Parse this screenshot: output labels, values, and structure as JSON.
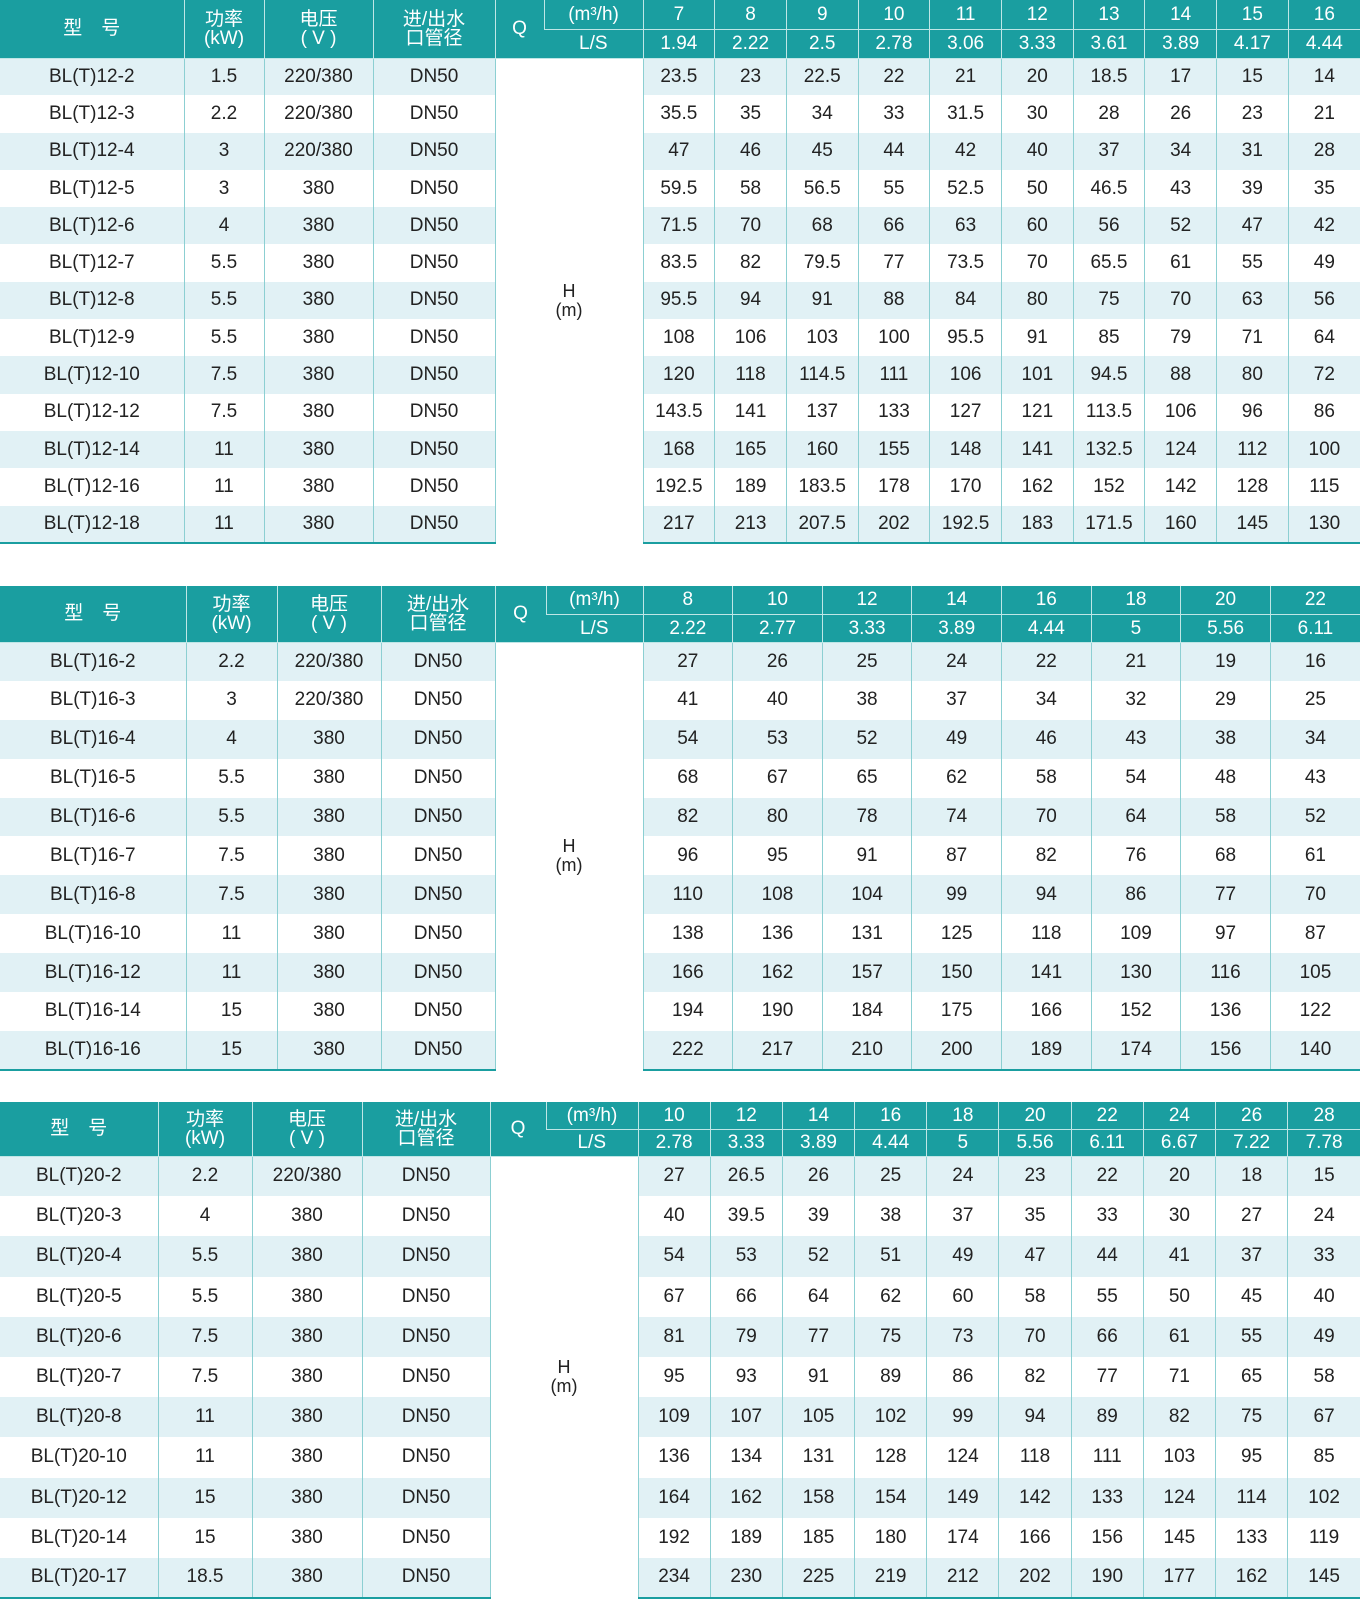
{
  "tables": [
    {
      "headers": {
        "model": "型　号",
        "power": "功率\n(kW)",
        "voltage": "电压\n( V )",
        "pipe": "进/出水\n口管径",
        "q": "Q",
        "unit_m3h": "(m³/h)",
        "unit_ls": "L/S",
        "head": "H\n(m)"
      },
      "flow_m3h": [
        "7",
        "8",
        "9",
        "10",
        "11",
        "12",
        "13",
        "14",
        "15",
        "16"
      ],
      "flow_ls": [
        "1.94",
        "2.22",
        "2.5",
        "2.78",
        "3.06",
        "3.33",
        "3.61",
        "3.89",
        "4.17",
        "4.44"
      ],
      "rows": [
        {
          "model": "BL(T)12-2",
          "power": "1.5",
          "voltage": "220/380",
          "pipe": "DN50",
          "head": [
            "23.5",
            "23",
            "22.5",
            "22",
            "21",
            "20",
            "18.5",
            "17",
            "15",
            "14"
          ]
        },
        {
          "model": "BL(T)12-3",
          "power": "2.2",
          "voltage": "220/380",
          "pipe": "DN50",
          "head": [
            "35.5",
            "35",
            "34",
            "33",
            "31.5",
            "30",
            "28",
            "26",
            "23",
            "21"
          ]
        },
        {
          "model": "BL(T)12-4",
          "power": "3",
          "voltage": "220/380",
          "pipe": "DN50",
          "head": [
            "47",
            "46",
            "45",
            "44",
            "42",
            "40",
            "37",
            "34",
            "31",
            "28"
          ]
        },
        {
          "model": "BL(T)12-5",
          "power": "3",
          "voltage": "380",
          "pipe": "DN50",
          "head": [
            "59.5",
            "58",
            "56.5",
            "55",
            "52.5",
            "50",
            "46.5",
            "43",
            "39",
            "35"
          ]
        },
        {
          "model": "BL(T)12-6",
          "power": "4",
          "voltage": "380",
          "pipe": "DN50",
          "head": [
            "71.5",
            "70",
            "68",
            "66",
            "63",
            "60",
            "56",
            "52",
            "47",
            "42"
          ]
        },
        {
          "model": "BL(T)12-7",
          "power": "5.5",
          "voltage": "380",
          "pipe": "DN50",
          "head": [
            "83.5",
            "82",
            "79.5",
            "77",
            "73.5",
            "70",
            "65.5",
            "61",
            "55",
            "49"
          ]
        },
        {
          "model": "BL(T)12-8",
          "power": "5.5",
          "voltage": "380",
          "pipe": "DN50",
          "head": [
            "95.5",
            "94",
            "91",
            "88",
            "84",
            "80",
            "75",
            "70",
            "63",
            "56"
          ]
        },
        {
          "model": "BL(T)12-9",
          "power": "5.5",
          "voltage": "380",
          "pipe": "DN50",
          "head": [
            "108",
            "106",
            "103",
            "100",
            "95.5",
            "91",
            "85",
            "79",
            "71",
            "64"
          ]
        },
        {
          "model": "BL(T)12-10",
          "power": "7.5",
          "voltage": "380",
          "pipe": "DN50",
          "head": [
            "120",
            "118",
            "114.5",
            "111",
            "106",
            "101",
            "94.5",
            "88",
            "80",
            "72"
          ]
        },
        {
          "model": "BL(T)12-12",
          "power": "7.5",
          "voltage": "380",
          "pipe": "DN50",
          "head": [
            "143.5",
            "141",
            "137",
            "133",
            "127",
            "121",
            "113.5",
            "106",
            "96",
            "86"
          ]
        },
        {
          "model": "BL(T)12-14",
          "power": "11",
          "voltage": "380",
          "pipe": "DN50",
          "head": [
            "168",
            "165",
            "160",
            "155",
            "148",
            "141",
            "132.5",
            "124",
            "112",
            "100"
          ]
        },
        {
          "model": "BL(T)12-16",
          "power": "11",
          "voltage": "380",
          "pipe": "DN50",
          "head": [
            "192.5",
            "189",
            "183.5",
            "178",
            "170",
            "162",
            "152",
            "142",
            "128",
            "115"
          ]
        },
        {
          "model": "BL(T)12-18",
          "power": "11",
          "voltage": "380",
          "pipe": "DN50",
          "head": [
            "217",
            "213",
            "207.5",
            "202",
            "192.5",
            "183",
            "171.5",
            "160",
            "145",
            "130"
          ]
        }
      ]
    },
    {
      "headers": {
        "model": "型　号",
        "power": "功率\n(kW)",
        "voltage": "电压\n( V )",
        "pipe": "进/出水\n口管径",
        "q": "Q",
        "unit_m3h": "(m³/h)",
        "unit_ls": "L/S",
        "head": "H\n(m)"
      },
      "flow_m3h": [
        "8",
        "10",
        "12",
        "14",
        "16",
        "18",
        "20",
        "22"
      ],
      "flow_ls": [
        "2.22",
        "2.77",
        "3.33",
        "3.89",
        "4.44",
        "5",
        "5.56",
        "6.11"
      ],
      "rows": [
        {
          "model": "BL(T)16-2",
          "power": "2.2",
          "voltage": "220/380",
          "pipe": "DN50",
          "head": [
            "27",
            "26",
            "25",
            "24",
            "22",
            "21",
            "19",
            "16"
          ]
        },
        {
          "model": "BL(T)16-3",
          "power": "3",
          "voltage": "220/380",
          "pipe": "DN50",
          "head": [
            "41",
            "40",
            "38",
            "37",
            "34",
            "32",
            "29",
            "25"
          ]
        },
        {
          "model": "BL(T)16-4",
          "power": "4",
          "voltage": "380",
          "pipe": "DN50",
          "head": [
            "54",
            "53",
            "52",
            "49",
            "46",
            "43",
            "38",
            "34"
          ]
        },
        {
          "model": "BL(T)16-5",
          "power": "5.5",
          "voltage": "380",
          "pipe": "DN50",
          "head": [
            "68",
            "67",
            "65",
            "62",
            "58",
            "54",
            "48",
            "43"
          ]
        },
        {
          "model": "BL(T)16-6",
          "power": "5.5",
          "voltage": "380",
          "pipe": "DN50",
          "head": [
            "82",
            "80",
            "78",
            "74",
            "70",
            "64",
            "58",
            "52"
          ]
        },
        {
          "model": "BL(T)16-7",
          "power": "7.5",
          "voltage": "380",
          "pipe": "DN50",
          "head": [
            "96",
            "95",
            "91",
            "87",
            "82",
            "76",
            "68",
            "61"
          ]
        },
        {
          "model": "BL(T)16-8",
          "power": "7.5",
          "voltage": "380",
          "pipe": "DN50",
          "head": [
            "110",
            "108",
            "104",
            "99",
            "94",
            "86",
            "77",
            "70"
          ]
        },
        {
          "model": "BL(T)16-10",
          "power": "11",
          "voltage": "380",
          "pipe": "DN50",
          "head": [
            "138",
            "136",
            "131",
            "125",
            "118",
            "109",
            "97",
            "87"
          ]
        },
        {
          "model": "BL(T)16-12",
          "power": "11",
          "voltage": "380",
          "pipe": "DN50",
          "head": [
            "166",
            "162",
            "157",
            "150",
            "141",
            "130",
            "116",
            "105"
          ]
        },
        {
          "model": "BL(T)16-14",
          "power": "15",
          "voltage": "380",
          "pipe": "DN50",
          "head": [
            "194",
            "190",
            "184",
            "175",
            "166",
            "152",
            "136",
            "122"
          ]
        },
        {
          "model": "BL(T)16-16",
          "power": "15",
          "voltage": "380",
          "pipe": "DN50",
          "head": [
            "222",
            "217",
            "210",
            "200",
            "189",
            "174",
            "156",
            "140"
          ]
        }
      ]
    },
    {
      "headers": {
        "model": "型　号",
        "power": "功率\n(kW)",
        "voltage": "电压\n( V )",
        "pipe": "进/出水\n口管径",
        "q": "Q",
        "unit_m3h": "(m³/h)",
        "unit_ls": "L/S",
        "head": "H\n(m)"
      },
      "flow_m3h": [
        "10",
        "12",
        "14",
        "16",
        "18",
        "20",
        "22",
        "24",
        "26",
        "28"
      ],
      "flow_ls": [
        "2.78",
        "3.33",
        "3.89",
        "4.44",
        "5",
        "5.56",
        "6.11",
        "6.67",
        "7.22",
        "7.78"
      ],
      "rows": [
        {
          "model": "BL(T)20-2",
          "power": "2.2",
          "voltage": "220/380",
          "pipe": "DN50",
          "head": [
            "27",
            "26.5",
            "26",
            "25",
            "24",
            "23",
            "22",
            "20",
            "18",
            "15"
          ]
        },
        {
          "model": "BL(T)20-3",
          "power": "4",
          "voltage": "380",
          "pipe": "DN50",
          "head": [
            "40",
            "39.5",
            "39",
            "38",
            "37",
            "35",
            "33",
            "30",
            "27",
            "24"
          ]
        },
        {
          "model": "BL(T)20-4",
          "power": "5.5",
          "voltage": "380",
          "pipe": "DN50",
          "head": [
            "54",
            "53",
            "52",
            "51",
            "49",
            "47",
            "44",
            "41",
            "37",
            "33"
          ]
        },
        {
          "model": "BL(T)20-5",
          "power": "5.5",
          "voltage": "380",
          "pipe": "DN50",
          "head": [
            "67",
            "66",
            "64",
            "62",
            "60",
            "58",
            "55",
            "50",
            "45",
            "40"
          ]
        },
        {
          "model": "BL(T)20-6",
          "power": "7.5",
          "voltage": "380",
          "pipe": "DN50",
          "head": [
            "81",
            "79",
            "77",
            "75",
            "73",
            "70",
            "66",
            "61",
            "55",
            "49"
          ]
        },
        {
          "model": "BL(T)20-7",
          "power": "7.5",
          "voltage": "380",
          "pipe": "DN50",
          "head": [
            "95",
            "93",
            "91",
            "89",
            "86",
            "82",
            "77",
            "71",
            "65",
            "58"
          ]
        },
        {
          "model": "BL(T)20-8",
          "power": "11",
          "voltage": "380",
          "pipe": "DN50",
          "head": [
            "109",
            "107",
            "105",
            "102",
            "99",
            "94",
            "89",
            "82",
            "75",
            "67"
          ]
        },
        {
          "model": "BL(T)20-10",
          "power": "11",
          "voltage": "380",
          "pipe": "DN50",
          "head": [
            "136",
            "134",
            "131",
            "128",
            "124",
            "118",
            "111",
            "103",
            "95",
            "85"
          ]
        },
        {
          "model": "BL(T)20-12",
          "power": "15",
          "voltage": "380",
          "pipe": "DN50",
          "head": [
            "164",
            "162",
            "158",
            "154",
            "149",
            "142",
            "133",
            "124",
            "114",
            "102"
          ]
        },
        {
          "model": "BL(T)20-14",
          "power": "15",
          "voltage": "380",
          "pipe": "DN50",
          "head": [
            "192",
            "189",
            "185",
            "180",
            "174",
            "166",
            "156",
            "145",
            "133",
            "119"
          ]
        },
        {
          "model": "BL(T)20-17",
          "power": "18.5",
          "voltage": "380",
          "pipe": "DN50",
          "head": [
            "234",
            "230",
            "225",
            "219",
            "212",
            "202",
            "190",
            "177",
            "162",
            "145"
          ]
        }
      ]
    }
  ],
  "colors": {
    "header": "#1a9ea0",
    "stripe": "#e1f1f5"
  }
}
